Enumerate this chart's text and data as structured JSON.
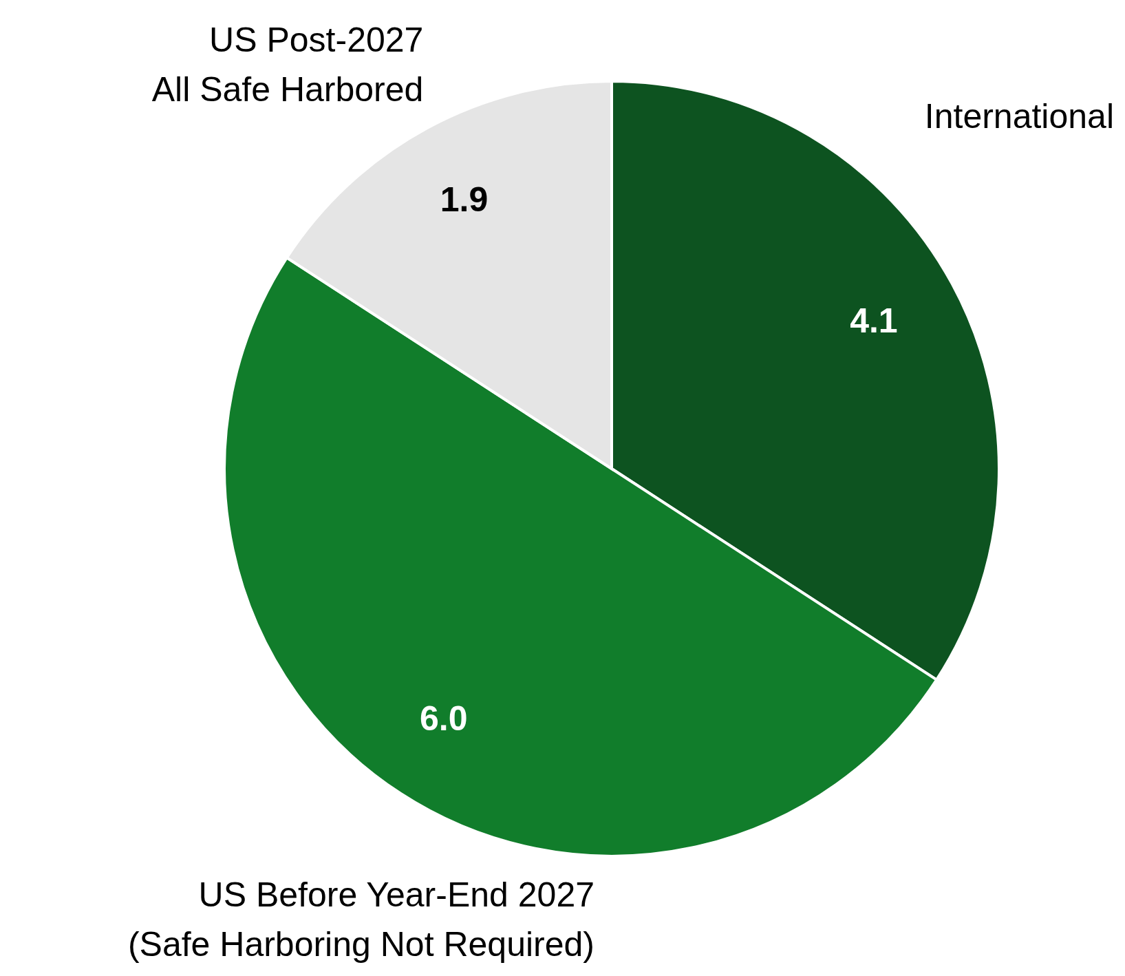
{
  "chart_data": {
    "type": "pie",
    "categories": [
      "International",
      "US Before Year-End 2027\n(Safe Harboring Not Required)",
      "US Post-2027\nAll Safe Harbored"
    ],
    "values": [
      4.1,
      6.0,
      1.9
    ],
    "value_labels": [
      "4.1",
      "6.0",
      "1.9"
    ],
    "colors": [
      "#0d5320",
      "#117d2b",
      "#e5e5e5"
    ],
    "legend": false
  }
}
